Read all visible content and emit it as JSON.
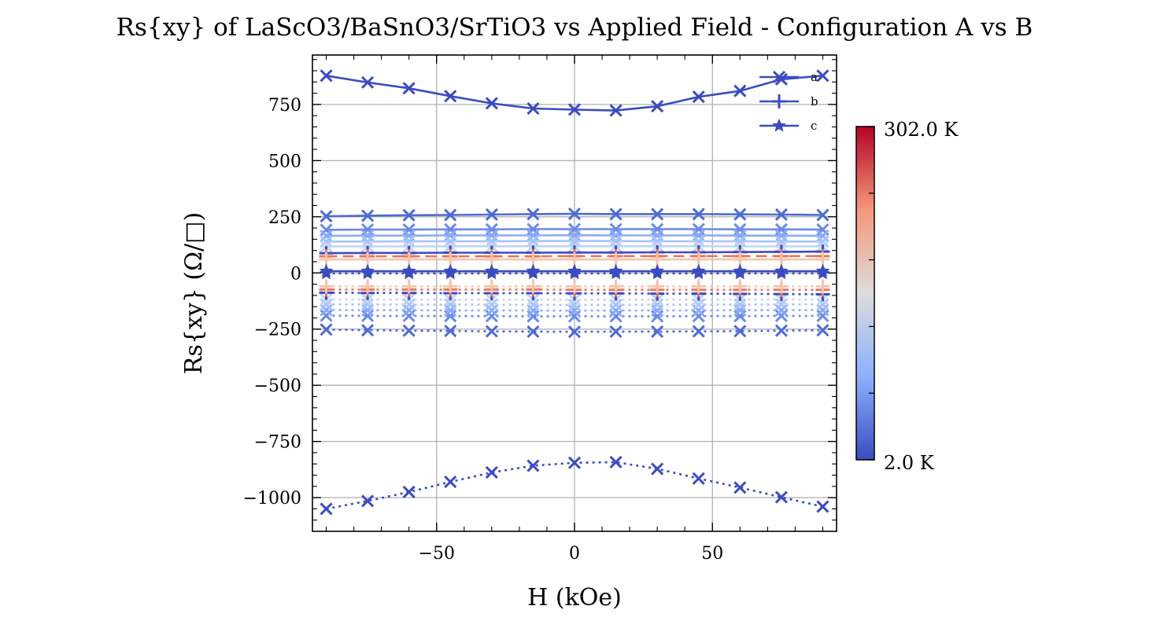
{
  "chart_data": {
    "type": "line",
    "title": "Rs{xy} of LaScO3/BaSnO3/SrTiO3 vs Applied Field - Configuration A vs B",
    "xlabel": "H (kOe)",
    "ylabel": "Rs{xy} (Ω/□)",
    "xlim": [
      -95,
      95
    ],
    "ylim": [
      -1150,
      970
    ],
    "xticks": [
      -50,
      0,
      50
    ],
    "yticks": [
      -1000,
      -750,
      -500,
      -250,
      0,
      250,
      500,
      750
    ],
    "xtick_labels": [
      "−50",
      "0",
      "50"
    ],
    "ytick_labels": [
      "−1000",
      "−750",
      "−500",
      "−250",
      "0",
      "250",
      "500",
      "750"
    ],
    "grid": true,
    "legend_position": "top-right",
    "legend": [
      {
        "label": "a",
        "marker": "x"
      },
      {
        "label": "b",
        "marker": "+"
      },
      {
        "label": "c",
        "marker": "star"
      }
    ],
    "colorbar": {
      "min_label": "302.0 K",
      "max_label": "2.0 K",
      "colormap": "coolwarm",
      "vmin": 2.0,
      "vmax": 302.0
    },
    "x": [
      -90,
      -75,
      -60,
      -45,
      -30,
      -15,
      0,
      15,
      30,
      45,
      60,
      75,
      90
    ],
    "series": [
      {
        "config": "a",
        "style": "solid",
        "temperature": 2.0,
        "color": "#3b4cc0",
        "values": [
          878,
          848,
          822,
          787,
          755,
          732,
          727,
          723,
          742,
          784,
          810,
          862,
          878
        ]
      },
      {
        "config": "a",
        "style": "dotted",
        "temperature": 2.0,
        "color": "#3b4cc0",
        "values": [
          -1050,
          -1015,
          -975,
          -930,
          -888,
          -858,
          -845,
          -842,
          -872,
          -915,
          -955,
          -998,
          -1040
        ]
      },
      {
        "config": "a",
        "style": "solid",
        "temperature": 10.0,
        "color": "#4e6ad4",
        "values": [
          252,
          255,
          257,
          258,
          260,
          262,
          263,
          262,
          262,
          262,
          261,
          260,
          258
        ]
      },
      {
        "config": "a",
        "style": "dotted",
        "temperature": 10.0,
        "color": "#4e6ad4",
        "values": [
          -252,
          -255,
          -257,
          -258,
          -260,
          -261,
          -262,
          -261,
          -261,
          -260,
          -259,
          -257,
          -255
        ]
      },
      {
        "config": "a",
        "style": "solid",
        "temperature": 40.0,
        "color": "#6b8ae8",
        "values": [
          192,
          193,
          193,
          194,
          194,
          195,
          195,
          195,
          195,
          195,
          194,
          194,
          193
        ]
      },
      {
        "config": "a",
        "style": "dotted",
        "temperature": 40.0,
        "color": "#6b8ae8",
        "values": [
          -190,
          -191,
          -191,
          -192,
          -192,
          -193,
          -193,
          -193,
          -193,
          -192,
          -192,
          -191,
          -191
        ]
      },
      {
        "config": "a",
        "style": "solid",
        "temperature": 80.0,
        "color": "#8aaaf6",
        "values": [
          165,
          166,
          166,
          167,
          167,
          167,
          168,
          167,
          167,
          167,
          166,
          166,
          165
        ]
      },
      {
        "config": "a",
        "style": "dotted",
        "temperature": 80.0,
        "color": "#8aaaf6",
        "values": [
          -165,
          -166,
          -166,
          -167,
          -167,
          -167,
          -168,
          -167,
          -167,
          -167,
          -166,
          -166,
          -165
        ]
      },
      {
        "config": "a",
        "style": "solid",
        "temperature": 120.0,
        "color": "#a7c3fd",
        "values": [
          140,
          140,
          141,
          141,
          141,
          142,
          142,
          142,
          141,
          141,
          141,
          140,
          140
        ]
      },
      {
        "config": "a",
        "style": "dotted",
        "temperature": 120.0,
        "color": "#a7c3fd",
        "values": [
          -140,
          -140,
          -141,
          -141,
          -141,
          -142,
          -142,
          -142,
          -141,
          -141,
          -141,
          -140,
          -140
        ]
      },
      {
        "config": "a",
        "style": "solid",
        "temperature": 160.0,
        "color": "#c0d4f5",
        "values": [
          118,
          118,
          118,
          119,
          119,
          119,
          119,
          119,
          119,
          119,
          118,
          118,
          118
        ]
      },
      {
        "config": "a",
        "style": "dotted",
        "temperature": 160.0,
        "color": "#c0d4f5",
        "values": [
          -118,
          -118,
          -118,
          -119,
          -119,
          -119,
          -119,
          -119,
          -119,
          -119,
          -118,
          -118,
          -118
        ]
      },
      {
        "config": "b",
        "style": "solid",
        "temperature": 2.0,
        "color": "#3b4cc0",
        "values": [
          88,
          89,
          89,
          90,
          90,
          90,
          91,
          91,
          92,
          92,
          93,
          94,
          95
        ]
      },
      {
        "config": "b",
        "style": "dotted",
        "temperature": 2.0,
        "color": "#3b4cc0",
        "values": [
          -88,
          -89,
          -89,
          -90,
          -90,
          -90,
          -91,
          -91,
          -92,
          -92,
          -93,
          -94,
          -95
        ]
      },
      {
        "config": "b",
        "style": "dashed",
        "temperature": 302.0,
        "color": "#e8765c",
        "values": [
          74,
          74,
          74,
          74,
          74,
          74,
          75,
          75,
          75,
          75,
          75,
          75,
          75
        ]
      },
      {
        "config": "b",
        "style": "dotted",
        "temperature": 302.0,
        "color": "#e8765c",
        "values": [
          -74,
          -74,
          -74,
          -74,
          -74,
          -74,
          -75,
          -75,
          -75,
          -75,
          -75,
          -75,
          -75
        ]
      },
      {
        "config": "b",
        "style": "solid",
        "temperature": 200.0,
        "color": "#f5c4ac",
        "values": [
          60,
          60,
          60,
          60,
          60,
          60,
          60,
          60,
          60,
          60,
          60,
          60,
          60
        ]
      },
      {
        "config": "b",
        "style": "dotted",
        "temperature": 200.0,
        "color": "#f5c4ac",
        "values": [
          -60,
          -60,
          -60,
          -60,
          -60,
          -60,
          -60,
          -60,
          -60,
          -60,
          -60,
          -60,
          -60
        ]
      },
      {
        "config": "c",
        "style": "solid",
        "temperature": 2.0,
        "color": "#3b4cc0",
        "values": [
          8,
          8,
          8,
          8,
          8,
          8,
          8,
          8,
          8,
          8,
          8,
          8,
          8
        ]
      },
      {
        "config": "c",
        "style": "dotted",
        "temperature": 2.0,
        "color": "#3b4cc0",
        "values": [
          -2,
          -2,
          -2,
          -2,
          -2,
          -2,
          -2,
          -2,
          -2,
          -2,
          -2,
          -2,
          -2
        ]
      }
    ]
  }
}
